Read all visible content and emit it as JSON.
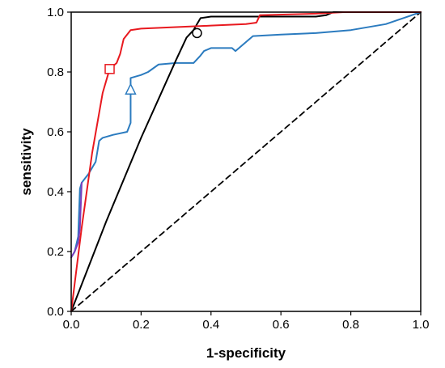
{
  "chart_data": {
    "type": "line",
    "xlabel": "1-specificity",
    "ylabel": "sensitivity",
    "xlim": [
      0,
      1
    ],
    "ylim": [
      0,
      1
    ],
    "x_ticks": [
      0,
      0.2,
      0.4,
      0.6,
      0.8,
      1
    ],
    "y_ticks": [
      0,
      0.2,
      0.4,
      0.6,
      0.8,
      1
    ],
    "x_tick_labels": [
      "0.0",
      "0.2",
      "0.4",
      "0.6",
      "0.8",
      "1.0"
    ],
    "y_tick_labels": [
      "0.0",
      "0.2",
      "0.4",
      "0.6",
      "0.8",
      "1.0"
    ],
    "grid": false,
    "legend": "none",
    "series": [
      {
        "color": "#e8191f",
        "marker": "square",
        "marker_point": [
          0.11,
          0.81
        ],
        "points": [
          [
            0,
            0
          ],
          [
            0.03,
            0.28
          ],
          [
            0.06,
            0.53
          ],
          [
            0.09,
            0.73
          ],
          [
            0.11,
            0.81
          ],
          [
            0.13,
            0.83
          ],
          [
            0.14,
            0.86
          ],
          [
            0.15,
            0.91
          ],
          [
            0.17,
            0.94
          ],
          [
            0.2,
            0.945
          ],
          [
            0.3,
            0.95
          ],
          [
            0.4,
            0.955
          ],
          [
            0.5,
            0.96
          ],
          [
            0.53,
            0.965
          ],
          [
            0.54,
            0.99
          ],
          [
            0.7,
            0.995
          ],
          [
            0.78,
            1
          ],
          [
            1,
            1
          ]
        ]
      },
      {
        "color": "#000000",
        "marker": "circle",
        "marker_point": [
          0.36,
          0.93
        ],
        "points": [
          [
            0,
            0
          ],
          [
            0.05,
            0.15
          ],
          [
            0.1,
            0.3
          ],
          [
            0.15,
            0.44
          ],
          [
            0.2,
            0.58
          ],
          [
            0.25,
            0.71
          ],
          [
            0.3,
            0.84
          ],
          [
            0.33,
            0.915
          ],
          [
            0.35,
            0.94
          ],
          [
            0.36,
            0.96
          ],
          [
            0.37,
            0.98
          ],
          [
            0.4,
            0.985
          ],
          [
            0.5,
            0.985
          ],
          [
            0.6,
            0.985
          ],
          [
            0.7,
            0.985
          ],
          [
            0.73,
            0.99
          ],
          [
            0.75,
            1
          ],
          [
            1,
            1
          ]
        ]
      },
      {
        "color": "#2b7bbf",
        "marker": "triangle",
        "marker_point": [
          0.17,
          0.74
        ],
        "points": [
          [
            0,
            0.18
          ],
          [
            0.01,
            0.2
          ],
          [
            0.02,
            0.25
          ],
          [
            0.025,
            0.41
          ],
          [
            0.03,
            0.43
          ],
          [
            0.05,
            0.46
          ],
          [
            0.07,
            0.5
          ],
          [
            0.08,
            0.57
          ],
          [
            0.09,
            0.58
          ],
          [
            0.12,
            0.59
          ],
          [
            0.16,
            0.6
          ],
          [
            0.17,
            0.63
          ],
          [
            0.17,
            0.78
          ],
          [
            0.2,
            0.79
          ],
          [
            0.22,
            0.8
          ],
          [
            0.25,
            0.825
          ],
          [
            0.3,
            0.83
          ],
          [
            0.35,
            0.83
          ],
          [
            0.37,
            0.855
          ],
          [
            0.38,
            0.87
          ],
          [
            0.4,
            0.88
          ],
          [
            0.46,
            0.88
          ],
          [
            0.47,
            0.87
          ],
          [
            0.5,
            0.9
          ],
          [
            0.52,
            0.92
          ],
          [
            0.6,
            0.925
          ],
          [
            0.7,
            0.93
          ],
          [
            0.8,
            0.94
          ],
          [
            0.9,
            0.96
          ],
          [
            1,
            1
          ]
        ]
      },
      {
        "color": "#7a3fbf",
        "marker": "none",
        "points": [
          [
            0,
            0.18
          ],
          [
            0.01,
            0.2
          ],
          [
            0.02,
            0.23
          ],
          [
            0.025,
            0.28
          ],
          [
            0.03,
            0.43
          ]
        ]
      },
      {
        "color": "#000000",
        "style": "dashed",
        "marker": "none",
        "points": [
          [
            0,
            0
          ],
          [
            1,
            1
          ]
        ]
      }
    ]
  }
}
